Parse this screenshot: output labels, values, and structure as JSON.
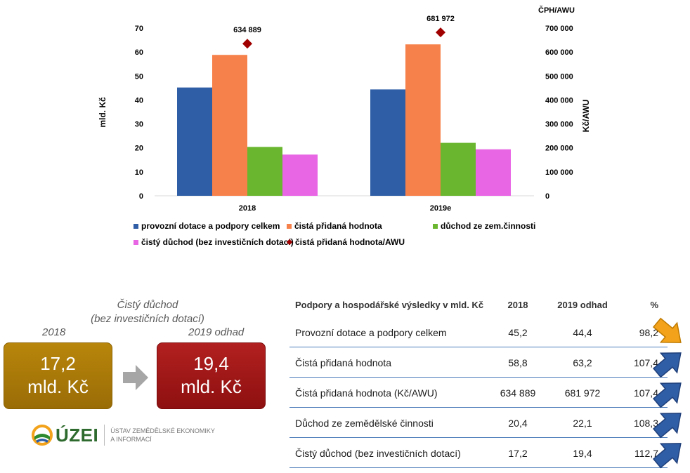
{
  "chart_data": {
    "type": "bar",
    "categories": [
      "2018",
      "2019e"
    ],
    "series": [
      {
        "name": "provozní dotace a podpory celkem",
        "axis": "left",
        "values": [
          45.2,
          44.4
        ],
        "color": "#2f5ea6"
      },
      {
        "name": "čistá přidaná hodnota",
        "axis": "left",
        "values": [
          58.8,
          63.2
        ],
        "color": "#f7814a"
      },
      {
        "name": "důchod ze zem.činnosti",
        "axis": "left",
        "values": [
          20.4,
          22.1
        ],
        "color": "#6ab62f"
      },
      {
        "name": "čistý důchod (bez investičních dotací)",
        "axis": "left",
        "values": [
          17.2,
          19.4
        ],
        "color": "#e865e4"
      },
      {
        "name": "čistá přidaná hodnota/AWU",
        "axis": "right",
        "type": "marker",
        "values": [
          634889,
          681972
        ],
        "color": "#a00000"
      }
    ],
    "data_labels": [
      "634 889",
      "681 972"
    ],
    "ylabel": "mld. Kč",
    "ylim": [
      0,
      70
    ],
    "yticks": [
      "0",
      "10",
      "20",
      "30",
      "40",
      "50",
      "60",
      "70"
    ],
    "y2label": "Kč/AWU",
    "y2title": "ČPH/AWU",
    "y2lim": [
      0,
      700000
    ],
    "y2ticks": [
      "0",
      "100 000",
      "200 000",
      "300 000",
      "400 000",
      "500 000",
      "600 000",
      "700 000"
    ],
    "legend_position": "bottom",
    "grid": false
  },
  "income": {
    "title_line1": "Čistý důchod",
    "title_line2": "(bez investičních dotací)",
    "year1": "2018",
    "year2": "2019 odhad",
    "box1_value": "17,2",
    "box1_unit": "mld. Kč",
    "box2_value": "19,4",
    "box2_unit": "mld. Kč"
  },
  "logo": {
    "name": "ÚZEI",
    "sub_line1": "ÚSTAV ZEMĚDĚLSKÉ EKONOMIKY",
    "sub_line2": "A INFORMACÍ"
  },
  "table": {
    "headers": [
      "Podpory a hospodářské výsledky v mld. Kč",
      "2018",
      "2019 odhad",
      "%"
    ],
    "rows": [
      {
        "label": "Provozní dotace a podpory celkem",
        "v2018": "45,2",
        "v2019": "44,4",
        "pct": "98,2",
        "trend": "down",
        "trend_color": "#f2a31b"
      },
      {
        "label": "Čistá přidaná hodnota",
        "v2018": "58,8",
        "v2019": "63,2",
        "pct": "107,4",
        "trend": "up",
        "trend_color": "#2f5ea6"
      },
      {
        "label": "Čistá přidaná hodnota (Kč/AWU)",
        "v2018": "634 889",
        "v2019": "681 972",
        "pct": "107,4",
        "trend": "up",
        "trend_color": "#2f5ea6"
      },
      {
        "label": "Důchod ze zemědělské činnosti",
        "v2018": "20,4",
        "v2019": "22,1",
        "pct": "108,3",
        "trend": "up",
        "trend_color": "#2f5ea6"
      },
      {
        "label": "Čistý důchod (bez investičních dotací)",
        "v2018": "17,2",
        "v2019": "19,4",
        "pct": "112,7",
        "trend": "up",
        "trend_color": "#2f5ea6"
      }
    ]
  }
}
